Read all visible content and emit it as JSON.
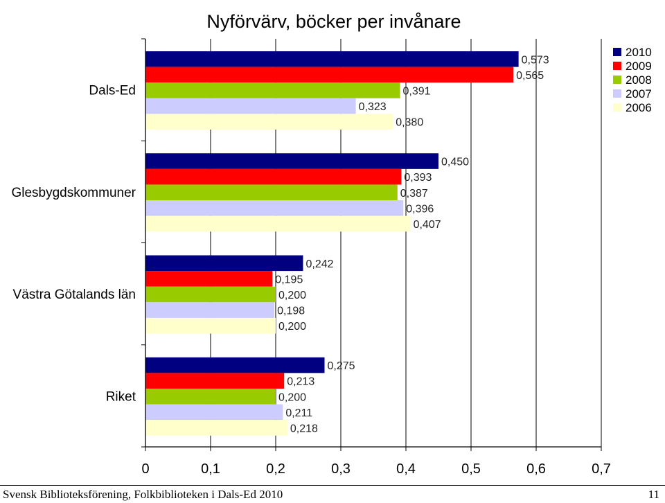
{
  "chart_data": {
    "type": "bar",
    "orientation": "horizontal",
    "title": "Nyförvärv, böcker per invånare",
    "categories": [
      "Dals-Ed",
      "Glesbygdskommuner",
      "Västra Götalands län",
      "Riket"
    ],
    "series": [
      {
        "name": "2010",
        "color": "#000080",
        "values": [
          0.573,
          0.45,
          0.242,
          0.275
        ],
        "labels": [
          "0,573",
          "0,450",
          "0,242",
          "0,275"
        ]
      },
      {
        "name": "2009",
        "color": "#ff0000",
        "values": [
          0.565,
          0.393,
          0.195,
          0.213
        ],
        "labels": [
          "0,565",
          "0,393",
          "0,195",
          "0,213"
        ]
      },
      {
        "name": "2008",
        "color": "#99cc00",
        "values": [
          0.391,
          0.387,
          0.2,
          0.2
        ],
        "labels": [
          "0,391",
          "0,387",
          "0,200",
          "0,200"
        ]
      },
      {
        "name": "2007",
        "color": "#ccccff",
        "values": [
          0.323,
          0.396,
          0.198,
          0.211
        ],
        "labels": [
          "0,323",
          "0,396",
          "0,198",
          "0,211"
        ]
      },
      {
        "name": "2006",
        "color": "#ffffcc",
        "values": [
          0.38,
          0.407,
          0.2,
          0.218
        ],
        "labels": [
          "0,380",
          "0,407",
          "0,200",
          "0,218"
        ]
      }
    ],
    "xlim": [
      0,
      0.7
    ],
    "xticks": [
      0,
      0.1,
      0.2,
      0.3,
      0.4,
      0.5,
      0.6,
      0.7
    ],
    "xtick_labels": [
      "0",
      "0,1",
      "0,2",
      "0,3",
      "0,4",
      "0,5",
      "0,6",
      "0,7"
    ],
    "grid": "vertical",
    "legend_position": "top-right"
  },
  "footer": {
    "left": "Svensk Biblioteksförening, Folkbiblioteken i Dals-Ed 2010",
    "page_number": "11"
  }
}
